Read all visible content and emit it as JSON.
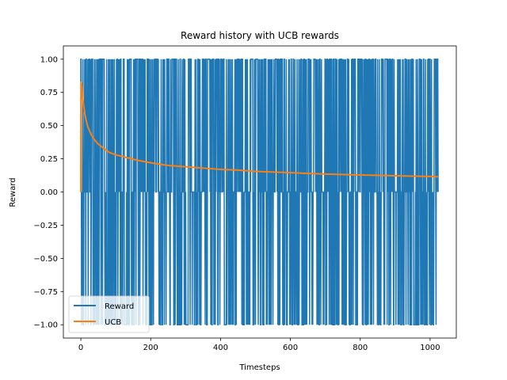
{
  "chart_data": {
    "type": "line",
    "title": "Reward history with UCB rewards",
    "xlabel": "Timesteps",
    "ylabel": "Reward",
    "xlim": [
      -50,
      1075
    ],
    "ylim": [
      -1.1,
      1.1
    ],
    "x_ticks": [
      0,
      200,
      400,
      600,
      800,
      1000
    ],
    "x_tick_labels": [
      "0",
      "200",
      "400",
      "600",
      "800",
      "1000"
    ],
    "y_ticks": [
      -1.0,
      -0.75,
      -0.5,
      -0.25,
      0.0,
      0.25,
      0.5,
      0.75,
      1.0
    ],
    "y_tick_labels": [
      "−1.00",
      "−0.75",
      "−0.50",
      "−0.25",
      "0.00",
      "0.25",
      "0.50",
      "0.75",
      "1.00"
    ],
    "grid": false,
    "legend": {
      "placement": "lower-left"
    },
    "series": [
      {
        "name": "Reward",
        "color": "#1f77b4",
        "x_range": [
          0,
          1023
        ],
        "values_allowed": [
          -1,
          0,
          1
        ],
        "note_values": "discrete per-timestep rewards oscillating among -1, 0 and 1"
      },
      {
        "name": "UCB",
        "color": "#ff7f0e",
        "points": [
          [
            0,
            0.0
          ],
          [
            1,
            0.83
          ],
          [
            3,
            0.8
          ],
          [
            5,
            0.72
          ],
          [
            8,
            0.65
          ],
          [
            12,
            0.58
          ],
          [
            16,
            0.53
          ],
          [
            20,
            0.49
          ],
          [
            25,
            0.46
          ],
          [
            30,
            0.43
          ],
          [
            40,
            0.39
          ],
          [
            50,
            0.36
          ],
          [
            60,
            0.34
          ],
          [
            80,
            0.3
          ],
          [
            100,
            0.28
          ],
          [
            130,
            0.26
          ],
          [
            160,
            0.24
          ],
          [
            200,
            0.22
          ],
          [
            250,
            0.2
          ],
          [
            300,
            0.19
          ],
          [
            350,
            0.18
          ],
          [
            400,
            0.17
          ],
          [
            450,
            0.165
          ],
          [
            500,
            0.155
          ],
          [
            600,
            0.145
          ],
          [
            700,
            0.135
          ],
          [
            800,
            0.128
          ],
          [
            900,
            0.122
          ],
          [
            1000,
            0.117
          ],
          [
            1023,
            0.115
          ]
        ]
      }
    ]
  }
}
